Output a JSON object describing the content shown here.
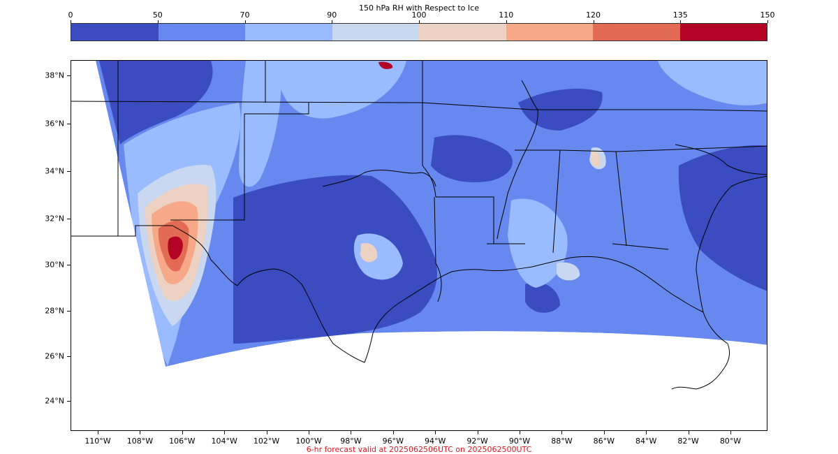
{
  "colorbar": {
    "title": "150 hPa RH with Respect to Ice",
    "ticks": [
      "0",
      "50",
      "70",
      "90",
      "100",
      "110",
      "120",
      "135",
      "150"
    ],
    "colors": [
      "#3a4cc0",
      "#6788ee",
      "#9abbff",
      "#c9d7f0",
      "#edd1c2",
      "#f7a889",
      "#e36a53",
      "#b40426"
    ]
  },
  "map": {
    "lat_labels": [
      "38°N",
      "36°N",
      "34°N",
      "32°N",
      "30°N",
      "28°N",
      "26°N",
      "24°N"
    ],
    "lon_labels": [
      "110°W",
      "108°W",
      "106°W",
      "104°W",
      "102°W",
      "100°W",
      "98°W",
      "96°W",
      "94°W",
      "92°W",
      "90°W",
      "88°W",
      "86°W",
      "84°W",
      "82°W",
      "80°W"
    ]
  },
  "footer": "6-hr forecast valid at 2025062506UTC on 2025062500UTC"
}
